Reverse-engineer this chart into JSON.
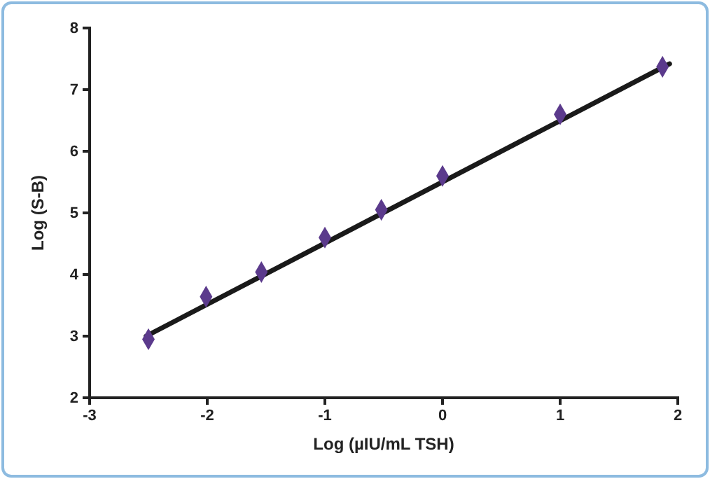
{
  "chart_data": {
    "type": "scatter",
    "xlabel": "Log (µIU/mL TSH)",
    "ylabel": "Log (S-B)",
    "xlim": [
      -3,
      2
    ],
    "ylim": [
      2,
      8
    ],
    "xticks": [
      -3,
      -2,
      -1,
      0,
      1,
      2
    ],
    "yticks": [
      2,
      3,
      4,
      5,
      6,
      7,
      8
    ],
    "grid": false,
    "series": [
      {
        "type": "line",
        "color": "#1a1a1a",
        "x": [
          -2.52,
          1.93
        ],
        "values": [
          3.0,
          7.42
        ],
        "marker": "none",
        "line_style": "solid"
      },
      {
        "color": "#5b3a8c",
        "x": [
          -2.5,
          -2.01,
          -1.54,
          -1.0,
          -0.52,
          0,
          1.0,
          1.87
        ],
        "values": [
          2.95,
          3.64,
          4.04,
          4.6,
          5.05,
          5.6,
          6.6,
          7.37
        ],
        "marker": "diamond"
      }
    ]
  }
}
